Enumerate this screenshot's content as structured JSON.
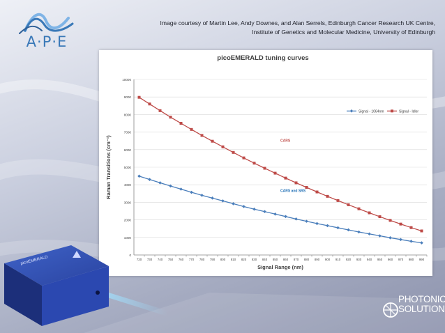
{
  "branding": {
    "ape_logo_text": "A·P·E",
    "photonic_line1": "PHOTONIC",
    "photonic_line2": "SOLUTIONS"
  },
  "courtesy": {
    "line1": "Image courtesy of Martin Lee, Andy Downes, and Alan Serrels, Edinburgh Cancer Research UK Centre,",
    "line2": "Institute of Genetics and Molecular Medicine, University of Edinburgh"
  },
  "device": {
    "label": "picoEMERALD"
  },
  "colors": {
    "signal_1064": "#4a7ebb",
    "signal_idler": "#be4b48",
    "cars_label": "#c0504d",
    "cars_srs_label": "#1f6fb5",
    "axis_text": "#404040"
  },
  "chart_data": {
    "type": "line",
    "title": "picoEMERALD tuning curves",
    "xlabel": "Signal Range (nm)",
    "ylabel": "Raman Transitions (cm⁻¹)",
    "x": [
      720,
      730,
      740,
      750,
      760,
      770,
      780,
      790,
      800,
      810,
      820,
      830,
      840,
      850,
      860,
      870,
      880,
      890,
      900,
      910,
      920,
      930,
      940,
      950,
      960,
      970,
      980,
      990
    ],
    "ylim": [
      0,
      10000
    ],
    "yticks": [
      0,
      1000,
      2000,
      3000,
      4000,
      5000,
      6000,
      7000,
      8000,
      9000,
      10000
    ],
    "series": [
      {
        "name": "Signal - 1064nm",
        "color": "#4a7ebb",
        "marker": "diamond",
        "values": [
          4490,
          4300,
          4110,
          3930,
          3750,
          3570,
          3400,
          3240,
          3080,
          2920,
          2760,
          2610,
          2470,
          2330,
          2190,
          2050,
          1920,
          1790,
          1670,
          1550,
          1430,
          1310,
          1200,
          1090,
          980,
          880,
          780,
          690
        ]
      },
      {
        "name": "Signal - Idler",
        "color": "#be4b48",
        "marker": "square",
        "values": [
          8980,
          8600,
          8220,
          7850,
          7500,
          7150,
          6810,
          6480,
          6160,
          5840,
          5530,
          5230,
          4940,
          4660,
          4380,
          4110,
          3850,
          3590,
          3340,
          3100,
          2860,
          2630,
          2400,
          2180,
          1970,
          1760,
          1560,
          1370
        ]
      }
    ],
    "legend_position": "right",
    "annotations": [
      {
        "text": "CARS",
        "color": "#c0504d",
        "x": 825,
        "y": 6450
      },
      {
        "text": "CARS and SRS",
        "color": "#1f6fb5",
        "x": 825,
        "y": 3600
      }
    ]
  }
}
